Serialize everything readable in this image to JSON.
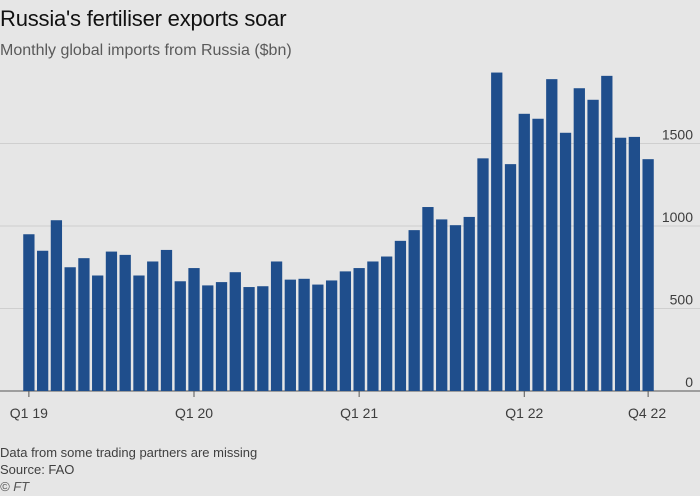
{
  "chart_data": {
    "type": "bar",
    "title": "Russia's fertiliser exports soar",
    "subtitle": "Monthly global imports from Russia ($bn)",
    "xlabel": "",
    "ylabel": "",
    "ylim": [
      0,
      2000
    ],
    "yticks": [
      0,
      500,
      1000,
      1500
    ],
    "y_axis_position": "right",
    "grid": "horizontal",
    "bar_color": "#1f4e8c",
    "x_tick_labels": [
      {
        "index": 0,
        "label": "Q1 19"
      },
      {
        "index": 12,
        "label": "Q1 20"
      },
      {
        "index": 24,
        "label": "Q1 21"
      },
      {
        "index": 36,
        "label": "Q1 22"
      },
      {
        "index": 45,
        "label": "Q4 22"
      }
    ],
    "categories": [
      "Jan 2019",
      "Feb 2019",
      "Mar 2019",
      "Apr 2019",
      "May 2019",
      "Jun 2019",
      "Jul 2019",
      "Aug 2019",
      "Sep 2019",
      "Oct 2019",
      "Nov 2019",
      "Dec 2019",
      "Jan 2020",
      "Feb 2020",
      "Mar 2020",
      "Apr 2020",
      "May 2020",
      "Jun 2020",
      "Jul 2020",
      "Aug 2020",
      "Sep 2020",
      "Oct 2020",
      "Nov 2020",
      "Dec 2020",
      "Jan 2021",
      "Feb 2021",
      "Mar 2021",
      "Apr 2021",
      "May 2021",
      "Jun 2021",
      "Jul 2021",
      "Aug 2021",
      "Sep 2021",
      "Oct 2021",
      "Nov 2021",
      "Dec 2021",
      "Jan 2022",
      "Feb 2022",
      "Mar 2022",
      "Apr 2022",
      "May 2022",
      "Jun 2022",
      "Jul 2022",
      "Aug 2022",
      "Sep 2022",
      "Oct 2022"
    ],
    "values": [
      950,
      850,
      1035,
      750,
      805,
      700,
      845,
      825,
      700,
      785,
      855,
      665,
      745,
      640,
      660,
      720,
      630,
      635,
      785,
      675,
      680,
      645,
      670,
      725,
      745,
      785,
      815,
      910,
      975,
      1115,
      1040,
      1005,
      1055,
      1410,
      1930,
      1375,
      1680,
      1650,
      1890,
      1565,
      1835,
      1765,
      1910,
      1535,
      1540,
      1405
    ]
  },
  "footer": {
    "note": "Data from some trading partners are missing",
    "source": "Source: FAO",
    "copyright": "© FT"
  }
}
